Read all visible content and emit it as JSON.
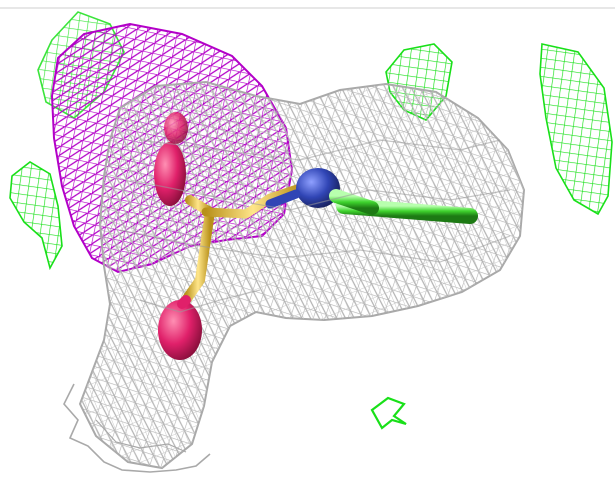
{
  "image": {
    "kind": "molecular-electron-density-render",
    "background_color": "#ffffff",
    "colors": {
      "mesh_gray": "#a9a9a9",
      "mesh_gray_light": "#c9c9c9",
      "mesh_magenta": "#b300c8",
      "mesh_green": "#19e019",
      "atom_red": "#e0206a",
      "atom_yellow": "#f2d24a",
      "atom_blue": "#3045b5",
      "atom_green": "#3fd42e"
    }
  }
}
